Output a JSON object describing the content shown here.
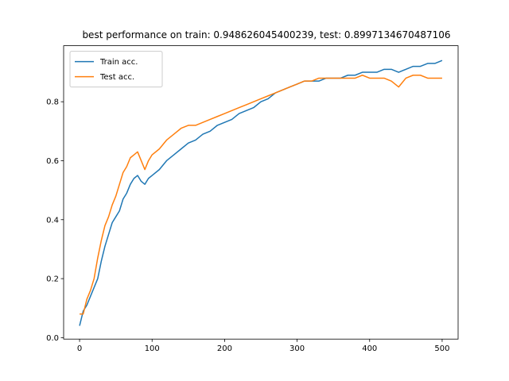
{
  "chart_data": {
    "type": "line",
    "title": "best performance on train: 0.948626045400239, test: 0.8997134670487106",
    "xlabel": "",
    "ylabel": "",
    "xlim": [
      -22,
      522
    ],
    "ylim": [
      -0.005,
      0.99
    ],
    "x_ticks": [
      0,
      100,
      200,
      300,
      400,
      500
    ],
    "y_ticks": [
      0.0,
      0.2,
      0.4,
      0.6,
      0.8
    ],
    "grid": false,
    "legend": "upper-left",
    "series": [
      {
        "name": "Train acc.",
        "color": "#1f77b4",
        "x": [
          0,
          5,
          10,
          15,
          20,
          25,
          30,
          35,
          40,
          45,
          50,
          55,
          60,
          65,
          70,
          75,
          80,
          85,
          90,
          95,
          100,
          110,
          120,
          130,
          140,
          150,
          160,
          170,
          180,
          190,
          200,
          210,
          220,
          230,
          240,
          250,
          260,
          270,
          280,
          290,
          300,
          310,
          320,
          330,
          340,
          350,
          360,
          370,
          380,
          390,
          400,
          410,
          420,
          430,
          440,
          450,
          460,
          470,
          480,
          490,
          500
        ],
        "y": [
          0.04,
          0.09,
          0.11,
          0.14,
          0.17,
          0.2,
          0.26,
          0.31,
          0.35,
          0.39,
          0.41,
          0.43,
          0.47,
          0.49,
          0.52,
          0.54,
          0.55,
          0.53,
          0.52,
          0.54,
          0.55,
          0.57,
          0.6,
          0.62,
          0.64,
          0.66,
          0.67,
          0.69,
          0.7,
          0.72,
          0.73,
          0.74,
          0.76,
          0.77,
          0.78,
          0.8,
          0.81,
          0.83,
          0.84,
          0.85,
          0.86,
          0.87,
          0.87,
          0.87,
          0.88,
          0.88,
          0.88,
          0.89,
          0.89,
          0.9,
          0.9,
          0.9,
          0.91,
          0.91,
          0.9,
          0.91,
          0.92,
          0.92,
          0.93,
          0.93,
          0.94
        ]
      },
      {
        "name": "Test acc.",
        "color": "#ff7f0e",
        "x": [
          0,
          5,
          10,
          15,
          20,
          25,
          30,
          35,
          40,
          45,
          50,
          55,
          60,
          65,
          70,
          75,
          80,
          85,
          90,
          95,
          100,
          110,
          120,
          130,
          140,
          150,
          160,
          170,
          180,
          190,
          200,
          210,
          220,
          230,
          240,
          250,
          260,
          270,
          280,
          290,
          300,
          310,
          320,
          330,
          340,
          350,
          360,
          370,
          380,
          390,
          400,
          410,
          420,
          430,
          440,
          450,
          460,
          470,
          480,
          490,
          500
        ],
        "y": [
          0.08,
          0.08,
          0.13,
          0.16,
          0.2,
          0.27,
          0.33,
          0.38,
          0.41,
          0.45,
          0.48,
          0.52,
          0.56,
          0.58,
          0.61,
          0.62,
          0.63,
          0.6,
          0.57,
          0.6,
          0.62,
          0.64,
          0.67,
          0.69,
          0.71,
          0.72,
          0.72,
          0.73,
          0.74,
          0.75,
          0.76,
          0.77,
          0.78,
          0.79,
          0.8,
          0.81,
          0.82,
          0.83,
          0.84,
          0.85,
          0.86,
          0.87,
          0.87,
          0.88,
          0.88,
          0.88,
          0.88,
          0.88,
          0.88,
          0.89,
          0.88,
          0.88,
          0.88,
          0.87,
          0.85,
          0.88,
          0.89,
          0.89,
          0.88,
          0.88,
          0.88
        ]
      }
    ]
  }
}
